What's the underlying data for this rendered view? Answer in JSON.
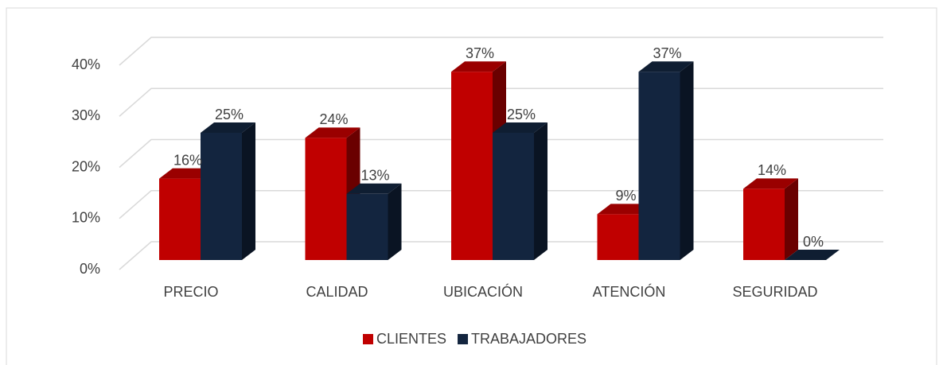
{
  "chart_data": {
    "type": "bar3d",
    "categories": [
      "PRECIO",
      "CALIDAD",
      "UBICACIÓN",
      "ATENCIÓN",
      "SEGURIDAD"
    ],
    "series": [
      {
        "name": "CLIENTES",
        "color": "#c00000",
        "values": [
          16,
          24,
          37,
          9,
          14
        ],
        "value_labels": [
          "16%",
          "24%",
          "37%",
          "9%",
          "14%"
        ]
      },
      {
        "name": "TRABAJADORES",
        "color": "#13253f",
        "values": [
          25,
          13,
          25,
          37,
          0
        ],
        "value_labels": [
          "25%",
          "13%",
          "25%",
          "37%",
          "0%"
        ]
      }
    ],
    "ylim": [
      0,
      40
    ],
    "yticks": [
      {
        "value": 0,
        "label": "0%"
      },
      {
        "value": 10,
        "label": "10%"
      },
      {
        "value": 20,
        "label": "20%"
      },
      {
        "value": 30,
        "label": "30%"
      },
      {
        "value": 40,
        "label": "40%"
      }
    ],
    "grid": true,
    "legend": "bottom"
  }
}
